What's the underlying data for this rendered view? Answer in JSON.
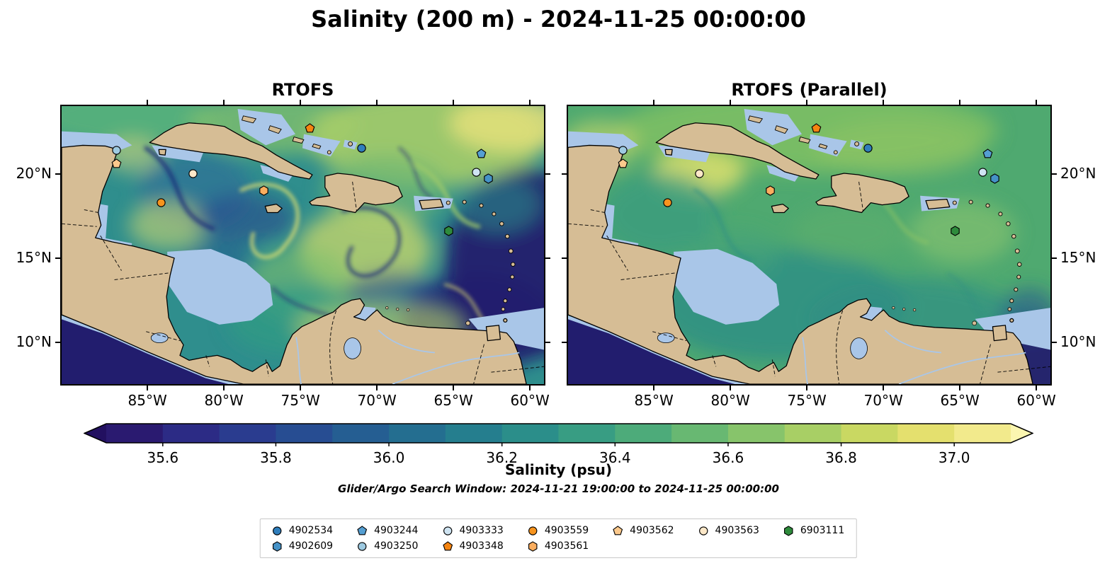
{
  "title": "Salinity (200 m) - 2024-11-25 00:00:00",
  "panels": [
    {
      "title": "RTOFS"
    },
    {
      "title": "RTOFS (Parallel)"
    }
  ],
  "axes": {
    "lon_tick_labels": [
      "85°W",
      "80°W",
      "75°W",
      "70°W",
      "65°W",
      "60°W"
    ],
    "lat_tick_labels": [
      "20°N",
      "15°N",
      "10°N"
    ]
  },
  "colorbar": {
    "label": "Salinity (psu)",
    "tick_labels": [
      "35.6",
      "35.8",
      "36.0",
      "36.2",
      "36.4",
      "36.6",
      "36.8",
      "37.0"
    ],
    "min": 35.5,
    "max": 37.1,
    "segment_colors": [
      "#2a1a70",
      "#2c2b85",
      "#2a3c8f",
      "#274d92",
      "#255e92",
      "#246e90",
      "#257e8e",
      "#2b8e8a",
      "#389d83",
      "#4dab7a",
      "#68b872",
      "#87c46b",
      "#a8cf65",
      "#c9d862",
      "#e4e06e",
      "#f2ea8c"
    ],
    "arrow_left_color": "#221060",
    "arrow_right_color": "#fbf6b0"
  },
  "search_window": "Glider/Argo Search Window: 2024-11-21 19:00:00 to 2024-11-25 00:00:00",
  "legend": {
    "entries": [
      {
        "id": "4902534",
        "shape": "circle",
        "color": "#2f7ebc"
      },
      {
        "id": "4903244",
        "shape": "pentagon",
        "color": "#559fd2"
      },
      {
        "id": "4903333",
        "shape": "circle",
        "color": "#cfe4f2"
      },
      {
        "id": "4903559",
        "shape": "circle",
        "color": "#f7941e"
      },
      {
        "id": "4903562",
        "shape": "pentagon",
        "color": "#fcc98c"
      },
      {
        "id": "4903563",
        "shape": "circle",
        "color": "#fde8c8"
      },
      {
        "id": "6903111",
        "shape": "hexagon",
        "color": "#2e8b3c"
      },
      {
        "id": "4902609",
        "shape": "hexagon",
        "color": "#4592c7"
      },
      {
        "id": "4903250",
        "shape": "circle",
        "color": "#9ecae1"
      },
      {
        "id": "4903348",
        "shape": "pentagon",
        "color": "#f58410"
      },
      {
        "id": "4903561",
        "shape": "hexagon",
        "color": "#fbae5f"
      }
    ]
  },
  "chart_data": {
    "type": "heatmap",
    "title": "Salinity (200 m) - 2024-11-25 00:00:00",
    "variable": "Salinity (psu)",
    "depth_m": 200,
    "valid_time": "2024-11-25 00:00:00",
    "panel_titles": [
      "RTOFS",
      "RTOFS (Parallel)"
    ],
    "region": "Caribbean Sea / Western Tropical Atlantic",
    "lon_ticks_degW": [
      85,
      80,
      75,
      70,
      65,
      60
    ],
    "lat_ticks_degN": [
      20,
      15,
      10
    ],
    "colorbar_range_psu": [
      35.5,
      37.1
    ],
    "colorbar_ticks_psu": [
      35.6,
      35.8,
      36.0,
      36.2,
      36.4,
      36.6,
      36.8,
      37.0
    ],
    "search_window": "2024-11-21 19:00:00 to 2024-11-25 00:00:00",
    "platform_positions": [
      {
        "id": "4903250",
        "lon_w": 87.0,
        "lat_n": 21.4
      },
      {
        "id": "4903562",
        "lon_w": 87.0,
        "lat_n": 20.6
      },
      {
        "id": "4903563",
        "lon_w": 82.0,
        "lat_n": 20.0
      },
      {
        "id": "4903559",
        "lon_w": 84.1,
        "lat_n": 18.3
      },
      {
        "id": "4903348",
        "lon_w": 74.4,
        "lat_n": 22.7
      },
      {
        "id": "4903561",
        "lon_w": 77.4,
        "lat_n": 19.0
      },
      {
        "id": "4902534",
        "lon_w": 71.0,
        "lat_n": 21.5
      },
      {
        "id": "4903244",
        "lon_w": 63.2,
        "lat_n": 21.2
      },
      {
        "id": "4903333",
        "lon_w": 63.5,
        "lat_n": 20.1
      },
      {
        "id": "4902609",
        "lon_w": 62.7,
        "lat_n": 19.7
      },
      {
        "id": "6903111",
        "lon_w": 65.3,
        "lat_n": 16.6
      }
    ]
  }
}
